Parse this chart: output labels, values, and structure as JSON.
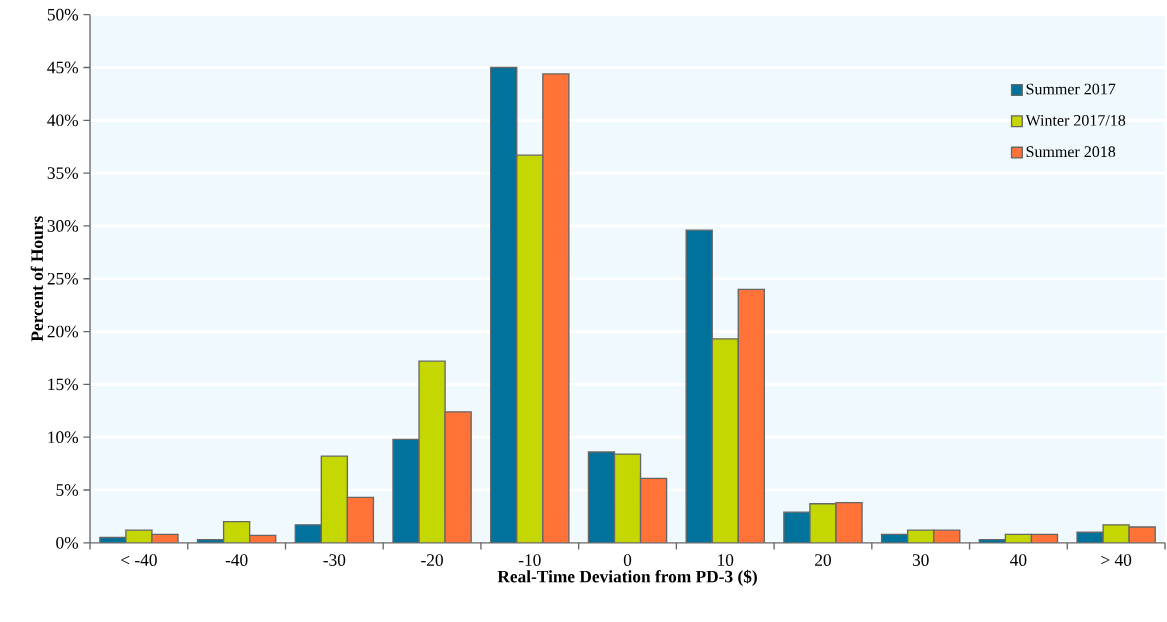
{
  "chart_data": {
    "type": "bar",
    "xlabel": "Real-Time  Deviation  from  PD-3  ($)",
    "ylabel": "Percent of Hours",
    "categories": [
      "< -40",
      "-40",
      "-30",
      "-20",
      "-10",
      "0",
      "10",
      "20",
      "30",
      "40",
      "> 40"
    ],
    "series": [
      {
        "name": "Summer 2017",
        "color": "#00729c",
        "values": [
          0.5,
          0.3,
          1.7,
          9.8,
          45,
          8.6,
          29.6,
          2.9,
          0.8,
          0.3,
          1.0
        ]
      },
      {
        "name": "Winter 2017/18",
        "color": "#c5d700",
        "values": [
          1.2,
          2.0,
          8.2,
          17.2,
          36.7,
          8.4,
          19.3,
          3.7,
          1.2,
          0.8,
          1.7
        ]
      },
      {
        "name": "Summer 2018",
        "color": "#ff7238",
        "values": [
          0.8,
          0.7,
          4.3,
          12.4,
          44.4,
          6.1,
          24.0,
          3.8,
          1.2,
          0.8,
          1.5
        ]
      }
    ],
    "ylim": [
      0,
      50
    ],
    "yticks": [
      {
        "value": 0,
        "label": "0%"
      },
      {
        "value": 5,
        "label": "5%"
      },
      {
        "value": 10,
        "label": "10%"
      },
      {
        "value": 15,
        "label": "15%"
      },
      {
        "value": 20,
        "label": "20%"
      },
      {
        "value": 25,
        "label": "25%"
      },
      {
        "value": 30,
        "label": "30%"
      },
      {
        "value": 35,
        "label": "35%"
      },
      {
        "value": 40,
        "label": "40%"
      },
      {
        "value": 45,
        "label": "45%"
      },
      {
        "value": 50,
        "label": "50%"
      }
    ],
    "grid": "y",
    "legend": "top right"
  }
}
